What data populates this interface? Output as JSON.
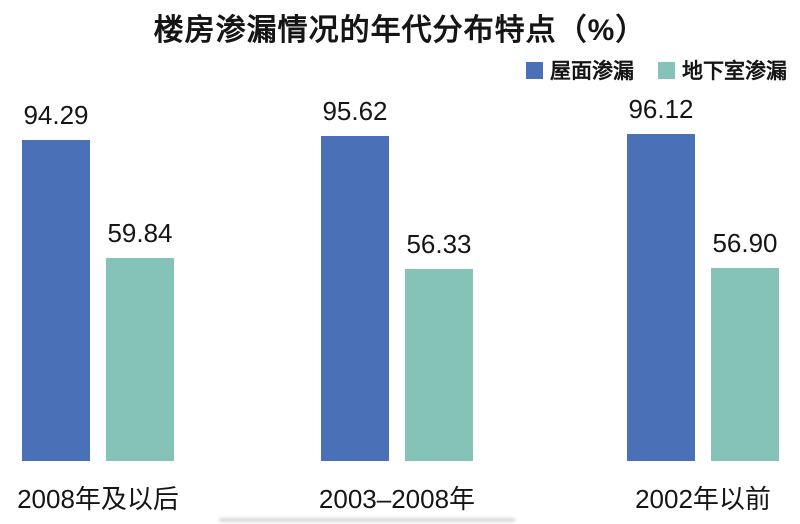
{
  "page": {
    "background": "#ffffff",
    "text_color": "#151515"
  },
  "chart_data": {
    "type": "bar",
    "title": "楼房渗漏情况的年代分布特点（%）",
    "categories": [
      "2008年及以后",
      "2003–2008年",
      "2002年以前"
    ],
    "series": [
      {
        "name": "屋面渗漏",
        "color": "#4a70b8",
        "values": [
          94.29,
          95.62,
          96.12
        ],
        "labels": [
          "94.29",
          "95.62",
          "96.12"
        ]
      },
      {
        "name": "地下室渗漏",
        "color": "#85c3b8",
        "values": [
          59.84,
          56.33,
          56.9
        ],
        "labels": [
          "59.84",
          "56.33",
          "56.90"
        ]
      }
    ],
    "ylim": [
      0,
      100
    ],
    "unit": "%",
    "grid": false,
    "axes_visible": false,
    "legend_position": "top-right",
    "value_labels_shown": true
  }
}
